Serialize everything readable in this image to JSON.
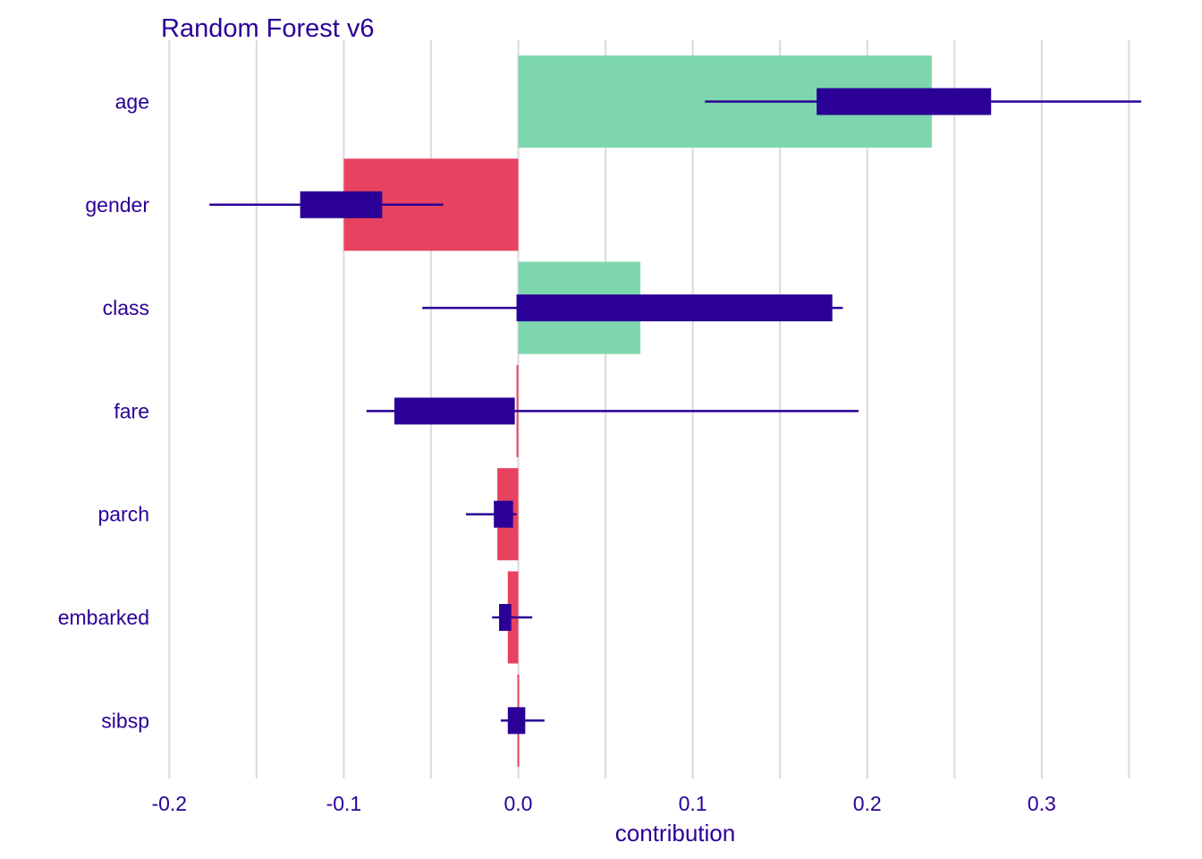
{
  "chart_data": {
    "type": "bar",
    "title": "Random Forest v6",
    "xlabel": "contribution",
    "ylabel": "",
    "xlim": [
      -0.2,
      0.36
    ],
    "x_ticks": [
      -0.2,
      -0.1,
      0.0,
      0.1,
      0.2,
      0.3
    ],
    "x_tick_labels": [
      "-0.2",
      "-0.1",
      "0.0",
      "0.1",
      "0.2",
      "0.3"
    ],
    "categories": [
      "age",
      "gender",
      "class",
      "fare",
      "parch",
      "embarked",
      "sibsp"
    ],
    "values": [
      0.237,
      -0.1,
      0.07,
      -0.001,
      -0.012,
      -0.006,
      -0.0005
    ],
    "boxplots": [
      {
        "whisker_low": 0.107,
        "q1": 0.171,
        "q3": 0.271,
        "whisker_high": 0.357
      },
      {
        "whisker_low": -0.177,
        "q1": -0.125,
        "q3": -0.078,
        "whisker_high": -0.043
      },
      {
        "whisker_low": -0.055,
        "q1": -0.001,
        "q3": 0.18,
        "whisker_high": 0.186
      },
      {
        "whisker_low": -0.087,
        "q1": -0.071,
        "q3": -0.002,
        "whisker_high": 0.195
      },
      {
        "whisker_low": -0.03,
        "q1": -0.014,
        "q3": -0.003,
        "whisker_high": -0.001
      },
      {
        "whisker_low": -0.015,
        "q1": -0.011,
        "q3": -0.004,
        "whisker_high": 0.008
      },
      {
        "whisker_low": -0.01,
        "q1": -0.006,
        "q3": 0.004,
        "whisker_high": 0.015
      }
    ],
    "grid": true,
    "colors": {
      "positive": "#7dd6ae",
      "negative": "#e84260",
      "box": "#2a0096",
      "text": "#2a0096",
      "grid": "#dddddd"
    }
  }
}
